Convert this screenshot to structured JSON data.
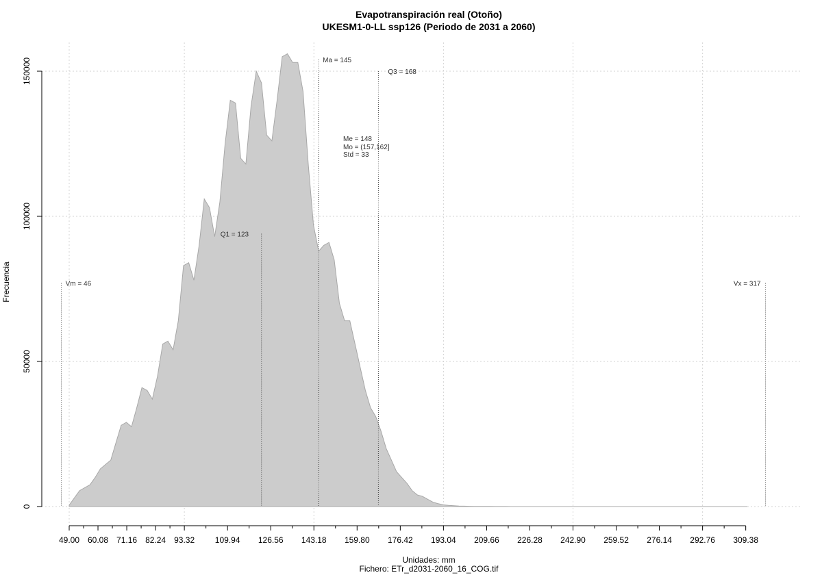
{
  "chart_data": {
    "type": "area",
    "title": "Evapotranspiración real (Otoño)",
    "subtitle": "UKESM1-0-LL ssp126 (Periodo de 2031 a 2060)",
    "xlabel": "Unidades: mm",
    "source": "Fichero: ETr_d2031-2060_16_COG.tif",
    "ylabel": "Frecuencia",
    "xlim": [
      46,
      317
    ],
    "ylim": [
      0,
      155000
    ],
    "x_ticks": [
      "49.00",
      "60.08",
      "71.16",
      "82.24",
      "93.32",
      "109.94",
      "126.56",
      "143.18",
      "159.80",
      "176.42",
      "193.04",
      "209.66",
      "226.28",
      "242.90",
      "259.52",
      "276.14",
      "292.76",
      "309.38"
    ],
    "y_ticks": [
      "0",
      "50000",
      "100000",
      "150000"
    ],
    "grid": true,
    "fill_color": "#cccccc",
    "line_color": "#a8a8a8",
    "x": [
      49,
      51,
      53,
      55,
      57,
      59,
      61,
      63,
      65,
      67,
      69,
      71,
      73,
      75,
      77,
      79,
      81,
      83,
      85,
      87,
      89,
      91,
      93,
      95,
      97,
      99,
      101,
      103,
      105,
      107,
      109,
      111,
      113,
      115,
      117,
      119,
      121,
      123,
      125,
      127,
      129,
      131,
      133,
      135,
      137,
      139,
      141,
      143,
      145,
      147,
      149,
      151,
      153,
      155,
      157,
      159,
      161,
      163,
      165,
      167,
      169,
      171,
      173,
      175,
      177,
      179,
      181,
      183,
      185,
      187,
      189,
      191,
      193,
      195,
      197,
      199,
      201,
      203,
      205,
      207,
      209,
      211,
      213,
      215,
      217,
      219,
      221,
      223,
      225,
      227,
      229,
      231,
      233,
      235,
      237,
      239,
      241,
      243,
      245,
      250,
      260,
      280,
      300,
      310
    ],
    "values": [
      500,
      3000,
      5500,
      6500,
      7500,
      10000,
      13000,
      14500,
      16000,
      22000,
      28000,
      29000,
      27500,
      34000,
      41000,
      40000,
      37000,
      45000,
      56000,
      57000,
      54000,
      64000,
      83000,
      84000,
      78000,
      90000,
      106000,
      103000,
      93000,
      105000,
      125000,
      140000,
      139000,
      120000,
      118000,
      138000,
      150000,
      146000,
      128000,
      126000,
      140000,
      155000,
      156000,
      153000,
      153000,
      143000,
      118000,
      97000,
      88000,
      90000,
      91000,
      85000,
      70000,
      64000,
      64000,
      56000,
      48000,
      40000,
      34000,
      31000,
      26000,
      20000,
      16000,
      12000,
      10000,
      8000,
      5500,
      4000,
      3500,
      2500,
      1500,
      1000,
      600,
      400,
      300,
      200,
      150,
      100,
      80,
      60,
      50,
      40,
      30,
      20,
      15,
      10,
      8,
      6,
      5,
      3,
      2,
      1,
      1,
      1,
      1,
      1,
      1,
      1,
      1,
      1,
      1,
      1,
      1,
      1
    ],
    "markers": [
      {
        "label": "Vm = 46",
        "x": 46,
        "y": 77000
      },
      {
        "label": "Q1 = 123",
        "x": 123,
        "y": 94000
      },
      {
        "label": "Ma = 145",
        "x": 145,
        "y": 154000
      },
      {
        "label": "Q3 = 168",
        "x": 168,
        "y": 150000
      },
      {
        "label": "Vx = 317",
        "x": 317,
        "y": 77000
      }
    ],
    "stats": [
      "Me = 148",
      "Mo = (157,162]",
      "Std = 33"
    ]
  }
}
